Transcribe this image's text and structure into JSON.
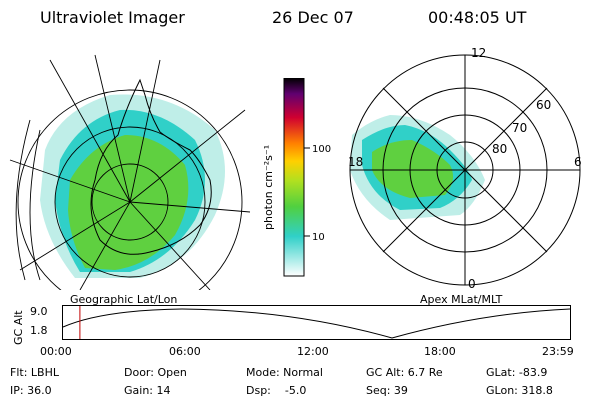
{
  "header": {
    "title": "Ultraviolet Imager",
    "date": "26 Dec 07",
    "time": "00:48:05 UT"
  },
  "colorbar": {
    "unit_label": "photon cm⁻²s⁻¹",
    "ticks": [
      "100",
      "10"
    ]
  },
  "left_map": {
    "label": "Geographic Lat/Lon"
  },
  "right_map": {
    "label": "Apex MLat/MLT",
    "mlt_labels": [
      "12",
      "18",
      "6",
      "0"
    ],
    "lat_labels": [
      "60",
      "70",
      "80"
    ]
  },
  "orbit": {
    "axis_label": "GC Alt",
    "y_ticks": [
      "9.0",
      "1.8"
    ],
    "x_ticks": [
      "00:00",
      "06:00",
      "12:00",
      "18:00",
      "23:59"
    ],
    "marker_hour": 0.8
  },
  "params": {
    "filter": "Flt: LBHL",
    "ip": "IP: 36.0",
    "door": "Door: Open",
    "gain": "Gain: 14",
    "mode": "Mode: Normal",
    "dsp": "Dsp:    -5.0",
    "gc_alt": "GC Alt: 6.7 Re",
    "seq": "Seq: 39",
    "glat": "GLat: -83.9",
    "glon": "GLon: 318.8"
  },
  "colors": {
    "marker": "#c00000",
    "aurora_green": "#5fd040",
    "aurora_cyan": "#30d0c8"
  }
}
